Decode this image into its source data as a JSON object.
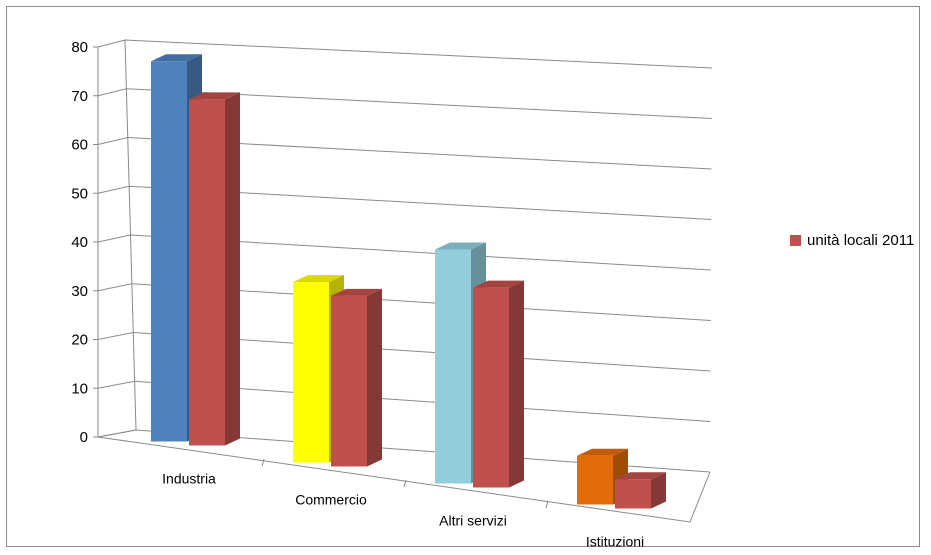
{
  "chart_data": {
    "type": "bar",
    "title": "",
    "xlabel": "",
    "ylabel": "",
    "ylim": [
      0,
      80
    ],
    "yticks": [
      "0",
      "10",
      "20",
      "30",
      "40",
      "50",
      "60",
      "70",
      "80"
    ],
    "categories": [
      "Industria",
      "Commercio",
      "Altri servizi",
      "Istituzioni"
    ],
    "grid": true,
    "legend_position": "right",
    "series": [
      {
        "values": [
          78,
          37,
          48,
          10
        ],
        "colors": [
          "#4f81bd",
          "#ffff00",
          "#92cddc",
          "#e36c0a"
        ]
      },
      {
        "name": "unità locali 2011",
        "values": [
          71,
          35,
          41,
          6
        ],
        "color": "#c0504d"
      }
    ]
  }
}
